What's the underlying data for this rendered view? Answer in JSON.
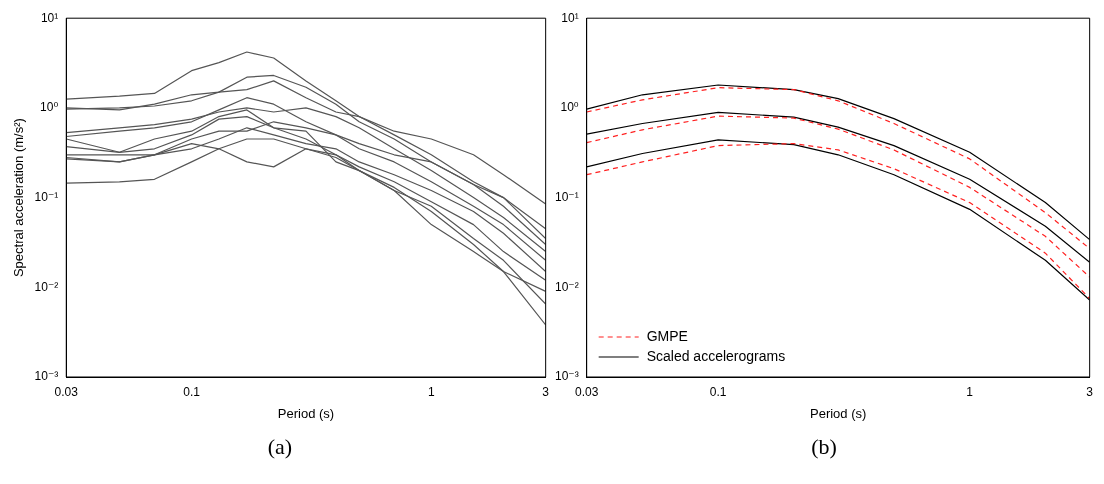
{
  "chart_data": [
    {
      "type": "line",
      "xlabel": "Period (s)",
      "ylabel": "Spectral acceleration (m/s²)",
      "log": "xy",
      "annotations": [
        "(a)"
      ],
      "xlim": [
        0.03,
        3
      ],
      "xticks": [
        0.03,
        0.1,
        1,
        3
      ],
      "ylim": [
        0.001,
        10
      ],
      "yticks": [
        {
          "value": 0.001,
          "label": "10⁻³"
        },
        {
          "value": 0.01,
          "label": "10⁻²"
        },
        {
          "value": 0.1,
          "label": "10⁻¹"
        },
        {
          "value": 1,
          "label": "10⁰"
        },
        {
          "value": 10,
          "label": "10¹"
        }
      ],
      "x": [
        0.03,
        0.05,
        0.07,
        0.1,
        0.13,
        0.17,
        0.22,
        0.3,
        0.4,
        0.5,
        0.7,
        1,
        1.5,
        2,
        3
      ],
      "series": [
        {
          "color": "#555555",
          "values": [
            1.25,
            1.35,
            1.45,
            2.6,
            3.2,
            4.2,
            3.6,
            2.0,
            1.2,
            0.8,
            0.5,
            0.3,
            0.15,
            0.1,
            0.045
          ]
        },
        {
          "color": "#555555",
          "values": [
            1.0,
            0.95,
            1.1,
            1.4,
            1.5,
            2.2,
            2.3,
            1.7,
            1.1,
            0.7,
            0.45,
            0.25,
            0.14,
            0.08,
            0.03
          ]
        },
        {
          "color": "#555555",
          "values": [
            0.97,
            1.0,
            1.05,
            1.2,
            1.5,
            1.6,
            2.0,
            1.3,
            0.9,
            0.8,
            0.55,
            0.45,
            0.3,
            0.18,
            0.085
          ]
        },
        {
          "color": "#555555",
          "values": [
            0.53,
            0.6,
            0.65,
            0.75,
            0.9,
            1.0,
            0.9,
            1.0,
            0.8,
            0.6,
            0.35,
            0.2,
            0.1,
            0.06,
            0.025
          ]
        },
        {
          "color": "#555555",
          "values": [
            0.48,
            0.55,
            0.6,
            0.7,
            0.95,
            1.3,
            1.1,
            0.7,
            0.5,
            0.35,
            0.25,
            0.15,
            0.08,
            0.05,
            0.02
          ]
        },
        {
          "color": "#555555",
          "values": [
            0.45,
            0.32,
            0.45,
            0.55,
            0.8,
            0.95,
            0.6,
            0.45,
            0.3,
            0.2,
            0.12,
            0.08,
            0.035,
            0.02,
            0.0065
          ]
        },
        {
          "color": "#555555",
          "values": [
            0.37,
            0.32,
            0.35,
            0.5,
            0.75,
            0.8,
            0.6,
            0.55,
            0.25,
            0.2,
            0.12,
            0.05,
            0.025,
            0.015,
            0.009
          ]
        },
        {
          "color": "#555555",
          "values": [
            0.3,
            0.3,
            0.3,
            0.45,
            0.55,
            0.55,
            0.7,
            0.6,
            0.5,
            0.4,
            0.3,
            0.25,
            0.14,
            0.1,
            0.035
          ]
        },
        {
          "color": "#555555",
          "values": [
            0.28,
            0.25,
            0.3,
            0.4,
            0.35,
            0.25,
            0.22,
            0.35,
            0.3,
            0.22,
            0.15,
            0.09,
            0.05,
            0.025,
            0.012
          ]
        },
        {
          "color": "#555555",
          "values": [
            0.27,
            0.25,
            0.3,
            0.35,
            0.45,
            0.6,
            0.5,
            0.4,
            0.35,
            0.25,
            0.18,
            0.12,
            0.07,
            0.04,
            0.015
          ]
        },
        {
          "color": "#555555",
          "values": [
            0.145,
            0.15,
            0.16,
            0.25,
            0.35,
            0.45,
            0.45,
            0.35,
            0.28,
            0.2,
            0.13,
            0.07,
            0.03,
            0.015,
            0.0038
          ]
        }
      ]
    },
    {
      "type": "line",
      "xlabel": "Period (s)",
      "log": "xy",
      "annotations": [
        "(b)"
      ],
      "legend": "bottom left",
      "xlim": [
        0.03,
        3
      ],
      "xticks": [
        0.03,
        0.1,
        1,
        3
      ],
      "ylim": [
        0.001,
        10
      ],
      "yticks": [
        {
          "value": 0.001,
          "label": "10⁻³"
        },
        {
          "value": 0.01,
          "label": "10⁻²"
        },
        {
          "value": 0.1,
          "label": "10⁻¹"
        },
        {
          "value": 1,
          "label": "10⁰"
        },
        {
          "value": 10,
          "label": "10¹"
        }
      ],
      "x": [
        0.03,
        0.05,
        0.1,
        0.2,
        0.3,
        0.5,
        1,
        2,
        3
      ],
      "series": [
        {
          "name": "GMPE",
          "color": "#ff2020",
          "line_style": "dashed",
          "values": [
            0.9,
            1.23,
            1.68,
            1.6,
            1.2,
            0.67,
            0.27,
            0.068,
            0.027
          ]
        },
        {
          "color": "#ff2020",
          "line_style": "dashed",
          "values": [
            0.41,
            0.57,
            0.81,
            0.77,
            0.58,
            0.34,
            0.13,
            0.037,
            0.013
          ]
        },
        {
          "color": "#ff2020",
          "line_style": "dashed",
          "values": [
            0.18,
            0.25,
            0.38,
            0.4,
            0.34,
            0.21,
            0.088,
            0.024,
            0.0075
          ]
        },
        {
          "name": "Scaled accelerograms",
          "color": "#000000",
          "line_style": "solid",
          "values": [
            0.97,
            1.4,
            1.8,
            1.6,
            1.27,
            0.76,
            0.32,
            0.088,
            0.034
          ]
        },
        {
          "color": "#000000",
          "line_style": "solid",
          "values": [
            0.51,
            0.67,
            0.89,
            0.79,
            0.61,
            0.38,
            0.16,
            0.048,
            0.019
          ]
        },
        {
          "color": "#000000",
          "line_style": "solid",
          "values": [
            0.22,
            0.31,
            0.44,
            0.39,
            0.3,
            0.18,
            0.074,
            0.02,
            0.0072
          ]
        }
      ]
    }
  ]
}
